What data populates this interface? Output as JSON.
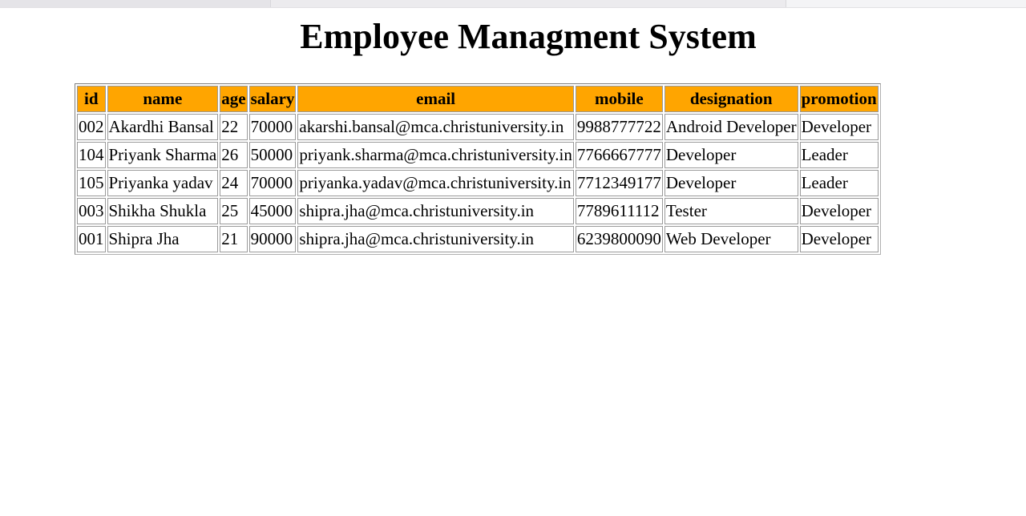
{
  "page": {
    "title": "Employee Managment System"
  },
  "colors": {
    "header_bg": "#ffa500"
  },
  "table": {
    "columns": [
      "id",
      "name",
      "age",
      "salary",
      "email",
      "mobile",
      "designation",
      "promotion"
    ],
    "rows": [
      [
        "002",
        "Akardhi Bansal",
        "22",
        "70000",
        "akarshi.bansal@mca.christuniversity.in",
        "9988777722",
        "Android Developer",
        "Developer"
      ],
      [
        "104",
        "Priyank Sharma",
        "26",
        "50000",
        "priyank.sharma@mca.christuniversity.in",
        "7766667777",
        "Developer",
        "Leader"
      ],
      [
        "105",
        "Priyanka yadav",
        "24",
        "70000",
        "priyanka.yadav@mca.christuniversity.in",
        "7712349177",
        "Developer",
        "Leader"
      ],
      [
        "003",
        "Shikha Shukla",
        "25",
        "45000",
        "shipra.jha@mca.christuniversity.in",
        "7789611112",
        "Tester",
        "Developer"
      ],
      [
        "001",
        "Shipra Jha",
        "21",
        "90000",
        "shipra.jha@mca.christuniversity.in",
        "6239800090",
        "Web Developer",
        "Developer"
      ]
    ]
  }
}
